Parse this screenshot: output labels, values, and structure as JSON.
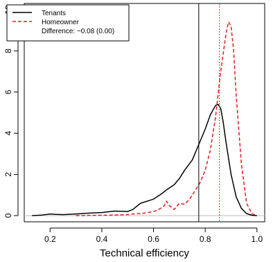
{
  "chart_data": {
    "type": "line",
    "title": "",
    "xlabel": "Technical efficiency",
    "ylabel": "",
    "xlim": [
      0.1,
      1.03
    ],
    "ylim": [
      -0.3,
      10.3
    ],
    "x_ticks": [
      0.2,
      0.4,
      0.6,
      0.8,
      1.0
    ],
    "x_tick_labels": [
      "0.2",
      "0.4",
      "0.6",
      "0.8",
      "1.0"
    ],
    "y_ticks": [
      0,
      2,
      4,
      6,
      8,
      10
    ],
    "y_tick_labels": [
      "0",
      "2",
      "4",
      "6",
      "8",
      "10"
    ],
    "grid": false,
    "legend_position": "top-left",
    "legend_note": "Difference: −0.08 (0.00)",
    "baseline": {
      "y": 0,
      "color": "#bbbbbb"
    },
    "vlines": [
      {
        "x": 0.775,
        "color": "#000000",
        "style": "solid"
      },
      {
        "x": 0.855,
        "color": "#e41a1c",
        "style": "dotted"
      }
    ],
    "series": [
      {
        "name": "Tenants",
        "color": "#000000",
        "style": "solid",
        "x": [
          0.13,
          0.17,
          0.2,
          0.22,
          0.25,
          0.3,
          0.35,
          0.4,
          0.45,
          0.5,
          0.52,
          0.55,
          0.58,
          0.6,
          0.63,
          0.65,
          0.68,
          0.7,
          0.72,
          0.75,
          0.77,
          0.8,
          0.82,
          0.84,
          0.85,
          0.86,
          0.87,
          0.88,
          0.9,
          0.92,
          0.94,
          0.96,
          0.98,
          1.0
        ],
        "y": [
          0.0,
          0.03,
          0.08,
          0.06,
          0.05,
          0.08,
          0.12,
          0.15,
          0.22,
          0.2,
          0.3,
          0.6,
          0.72,
          0.8,
          1.05,
          1.25,
          1.5,
          1.8,
          2.2,
          2.7,
          3.3,
          4.2,
          4.9,
          5.35,
          5.4,
          5.2,
          4.5,
          3.6,
          2.0,
          0.9,
          0.35,
          0.1,
          0.02,
          0.0
        ]
      },
      {
        "name": "Homeowner",
        "color": "#e41a1c",
        "style": "dashed",
        "x": [
          0.3,
          0.35,
          0.4,
          0.45,
          0.5,
          0.52,
          0.55,
          0.58,
          0.6,
          0.62,
          0.64,
          0.65,
          0.66,
          0.68,
          0.7,
          0.72,
          0.74,
          0.76,
          0.78,
          0.8,
          0.82,
          0.84,
          0.86,
          0.88,
          0.89,
          0.9,
          0.91,
          0.92,
          0.94,
          0.96,
          0.98,
          1.0
        ],
        "y": [
          0.0,
          0.01,
          0.02,
          0.03,
          0.05,
          0.08,
          0.1,
          0.15,
          0.2,
          0.3,
          0.45,
          0.7,
          0.5,
          0.3,
          0.6,
          0.55,
          0.8,
          1.2,
          1.6,
          2.2,
          3.2,
          4.8,
          7.0,
          8.8,
          9.4,
          9.2,
          8.0,
          5.8,
          2.5,
          0.6,
          0.1,
          0.0
        ]
      }
    ]
  }
}
